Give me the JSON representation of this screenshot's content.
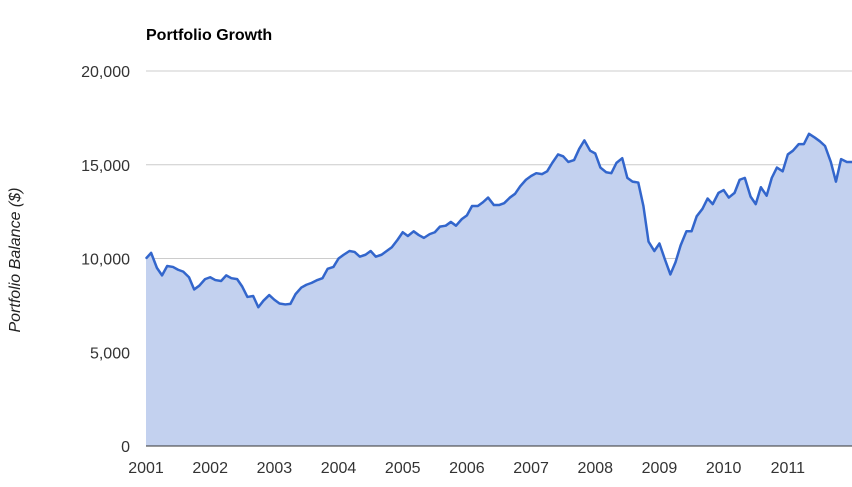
{
  "colors": {
    "line": "#3366cc",
    "area": "#c3d1ef",
    "grid": "#cccccc",
    "background": "#ffffff"
  },
  "chart_data": {
    "type": "area",
    "title": "Portfolio Growth",
    "xlabel": "",
    "ylabel": "Portfolio Balance ($)",
    "ylim": [
      0,
      20000
    ],
    "xlim": [
      2001.0,
      2012.0
    ],
    "grid": true,
    "yticks": [
      {
        "value": 0,
        "label": "0"
      },
      {
        "value": 5000,
        "label": "5,000"
      },
      {
        "value": 10000,
        "label": "10,000"
      },
      {
        "value": 15000,
        "label": "15,000"
      },
      {
        "value": 20000,
        "label": "20,000"
      }
    ],
    "xticks": [
      {
        "value": 2001,
        "label": "2001"
      },
      {
        "value": 2002,
        "label": "2002"
      },
      {
        "value": 2003,
        "label": "2003"
      },
      {
        "value": 2004,
        "label": "2004"
      },
      {
        "value": 2005,
        "label": "2005"
      },
      {
        "value": 2006,
        "label": "2006"
      },
      {
        "value": 2007,
        "label": "2007"
      },
      {
        "value": 2008,
        "label": "2008"
      },
      {
        "value": 2009,
        "label": "2009"
      },
      {
        "value": 2010,
        "label": "2010"
      },
      {
        "value": 2011,
        "label": "2011"
      }
    ],
    "series": [
      {
        "points": [
          [
            2001.0,
            10000
          ],
          [
            2001.08,
            10300
          ],
          [
            2001.17,
            9500
          ],
          [
            2001.25,
            9100
          ],
          [
            2001.33,
            9600
          ],
          [
            2001.42,
            9550
          ],
          [
            2001.5,
            9400
          ],
          [
            2001.58,
            9300
          ],
          [
            2001.67,
            9000
          ],
          [
            2001.75,
            8350
          ],
          [
            2001.83,
            8550
          ],
          [
            2001.92,
            8900
          ],
          [
            2002.0,
            9000
          ],
          [
            2002.08,
            8850
          ],
          [
            2002.17,
            8800
          ],
          [
            2002.25,
            9100
          ],
          [
            2002.33,
            8950
          ],
          [
            2002.42,
            8900
          ],
          [
            2002.5,
            8500
          ],
          [
            2002.58,
            7950
          ],
          [
            2002.67,
            8000
          ],
          [
            2002.75,
            7400
          ],
          [
            2002.83,
            7750
          ],
          [
            2002.92,
            8050
          ],
          [
            2003.0,
            7800
          ],
          [
            2003.08,
            7600
          ],
          [
            2003.17,
            7550
          ],
          [
            2003.25,
            7580
          ],
          [
            2003.33,
            8100
          ],
          [
            2003.42,
            8450
          ],
          [
            2003.5,
            8600
          ],
          [
            2003.58,
            8700
          ],
          [
            2003.67,
            8850
          ],
          [
            2003.75,
            8950
          ],
          [
            2003.83,
            9450
          ],
          [
            2003.92,
            9550
          ],
          [
            2004.0,
            10000
          ],
          [
            2004.08,
            10200
          ],
          [
            2004.17,
            10400
          ],
          [
            2004.25,
            10350
          ],
          [
            2004.33,
            10100
          ],
          [
            2004.42,
            10200
          ],
          [
            2004.5,
            10400
          ],
          [
            2004.58,
            10100
          ],
          [
            2004.67,
            10200
          ],
          [
            2004.75,
            10400
          ],
          [
            2004.83,
            10600
          ],
          [
            2004.92,
            11000
          ],
          [
            2005.0,
            11400
          ],
          [
            2005.08,
            11200
          ],
          [
            2005.17,
            11450
          ],
          [
            2005.25,
            11250
          ],
          [
            2005.33,
            11100
          ],
          [
            2005.42,
            11300
          ],
          [
            2005.5,
            11400
          ],
          [
            2005.58,
            11700
          ],
          [
            2005.67,
            11750
          ],
          [
            2005.75,
            11950
          ],
          [
            2005.83,
            11750
          ],
          [
            2005.92,
            12100
          ],
          [
            2006.0,
            12300
          ],
          [
            2006.08,
            12800
          ],
          [
            2006.17,
            12800
          ],
          [
            2006.25,
            13000
          ],
          [
            2006.33,
            13250
          ],
          [
            2006.42,
            12850
          ],
          [
            2006.5,
            12850
          ],
          [
            2006.58,
            12950
          ],
          [
            2006.67,
            13250
          ],
          [
            2006.75,
            13450
          ],
          [
            2006.83,
            13850
          ],
          [
            2006.92,
            14200
          ],
          [
            2007.0,
            14400
          ],
          [
            2007.08,
            14550
          ],
          [
            2007.17,
            14500
          ],
          [
            2007.25,
            14650
          ],
          [
            2007.33,
            15100
          ],
          [
            2007.42,
            15550
          ],
          [
            2007.5,
            15450
          ],
          [
            2007.58,
            15150
          ],
          [
            2007.67,
            15250
          ],
          [
            2007.75,
            15850
          ],
          [
            2007.83,
            16300
          ],
          [
            2007.92,
            15750
          ],
          [
            2008.0,
            15600
          ],
          [
            2008.08,
            14850
          ],
          [
            2008.17,
            14600
          ],
          [
            2008.25,
            14550
          ],
          [
            2008.33,
            15100
          ],
          [
            2008.42,
            15350
          ],
          [
            2008.5,
            14300
          ],
          [
            2008.58,
            14100
          ],
          [
            2008.67,
            14050
          ],
          [
            2008.75,
            12800
          ],
          [
            2008.83,
            10900
          ],
          [
            2008.92,
            10400
          ],
          [
            2009.0,
            10800
          ],
          [
            2009.08,
            10000
          ],
          [
            2009.17,
            9150
          ],
          [
            2009.25,
            9800
          ],
          [
            2009.33,
            10700
          ],
          [
            2009.42,
            11450
          ],
          [
            2009.5,
            11450
          ],
          [
            2009.58,
            12250
          ],
          [
            2009.67,
            12650
          ],
          [
            2009.75,
            13200
          ],
          [
            2009.83,
            12900
          ],
          [
            2009.92,
            13500
          ],
          [
            2010.0,
            13650
          ],
          [
            2010.08,
            13250
          ],
          [
            2010.17,
            13500
          ],
          [
            2010.25,
            14200
          ],
          [
            2010.33,
            14300
          ],
          [
            2010.42,
            13300
          ],
          [
            2010.5,
            12900
          ],
          [
            2010.58,
            13800
          ],
          [
            2010.67,
            13350
          ],
          [
            2010.75,
            14300
          ],
          [
            2010.83,
            14850
          ],
          [
            2010.92,
            14650
          ],
          [
            2011.0,
            15550
          ],
          [
            2011.08,
            15750
          ],
          [
            2011.17,
            16100
          ],
          [
            2011.25,
            16100
          ],
          [
            2011.33,
            16650
          ],
          [
            2011.42,
            16450
          ],
          [
            2011.5,
            16250
          ],
          [
            2011.58,
            16000
          ],
          [
            2011.67,
            15150
          ],
          [
            2011.75,
            14100
          ],
          [
            2011.83,
            15300
          ],
          [
            2011.92,
            15150
          ],
          [
            2012.0,
            15150
          ]
        ]
      }
    ]
  }
}
